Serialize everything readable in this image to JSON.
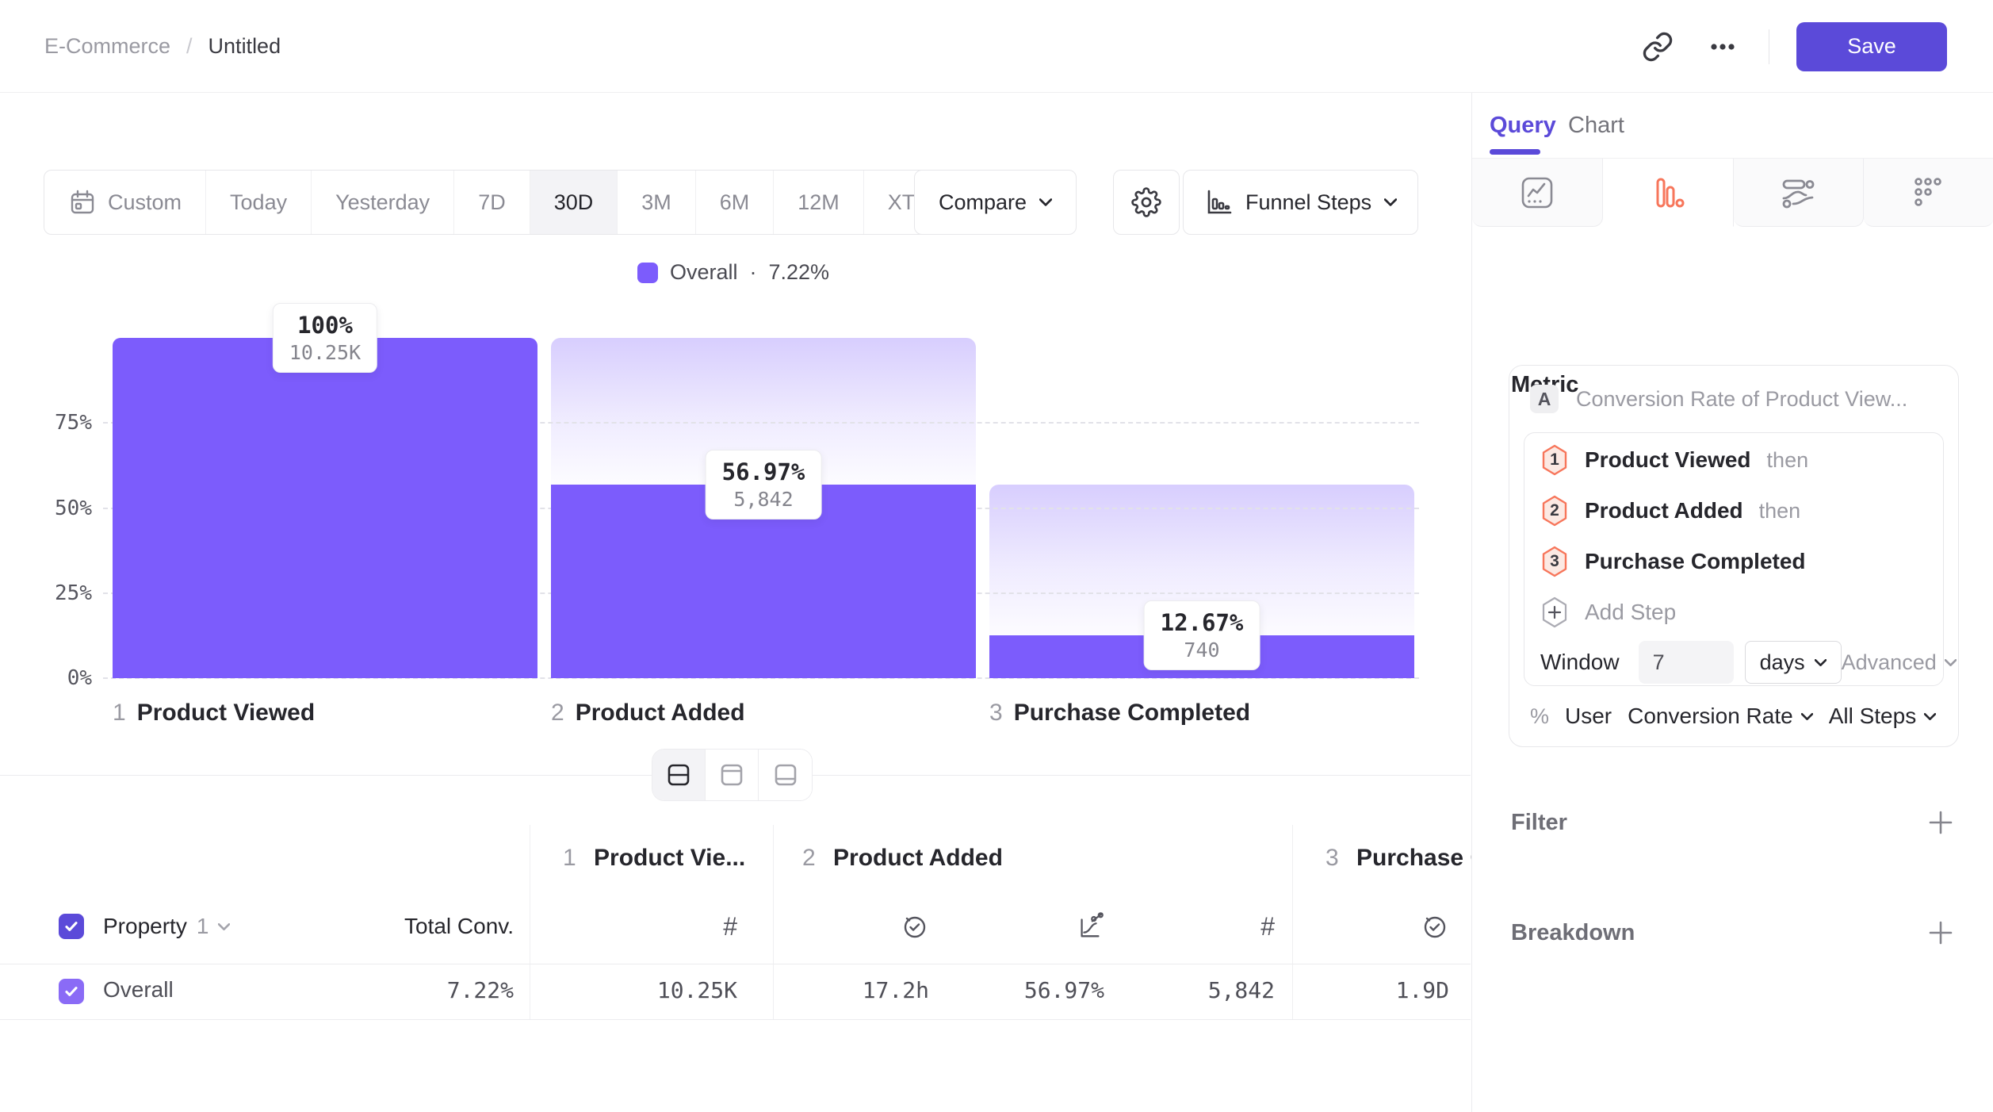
{
  "header": {
    "breadcrumb_parent": "E-Commerce",
    "breadcrumb_separator": "/",
    "breadcrumb_current": "Untitled",
    "save_label": "Save"
  },
  "toolbar": {
    "ranges": [
      "Custom",
      "Today",
      "Yesterday",
      "7D",
      "30D",
      "3M",
      "6M",
      "12M",
      "XTD"
    ],
    "selected_range": "30D",
    "compare_label": "Compare",
    "view_selector_label": "Funnel Steps"
  },
  "legend": {
    "series_name": "Overall",
    "separator": "·",
    "value": "7.22%",
    "swatch_color": "#7C5CFC"
  },
  "chart_data": {
    "type": "bar",
    "subtype": "funnel-steps",
    "title": "",
    "categories": [
      "Product Viewed",
      "Product Added",
      "Purchase Completed"
    ],
    "step_numbers": [
      "1",
      "2",
      "3"
    ],
    "series": [
      {
        "name": "Overall",
        "values_pct": [
          100,
          56.97,
          12.67
        ],
        "value_labels": [
          "100%",
          "56.97%",
          "12.67%"
        ],
        "counts": [
          "10.25K",
          "5,842",
          "740"
        ]
      }
    ],
    "overall_conversion": "7.22%",
    "y_ticks": [
      {
        "label": "75%",
        "pct": 75
      },
      {
        "label": "50%",
        "pct": 50
      },
      {
        "label": "25%",
        "pct": 25
      },
      {
        "label": "0%",
        "pct": 0
      }
    ],
    "ylim": [
      0,
      100
    ],
    "grid": "dashed-horizontal",
    "legend_position": "top-center",
    "bar_color": "#7C5CFC"
  },
  "layout_toggle": {
    "options": [
      "split",
      "chart-only",
      "table-only"
    ],
    "selected": "split"
  },
  "table": {
    "header": {
      "property_label": "Property",
      "property_index": "1",
      "total_conv_label": "Total Conv.",
      "step_columns": [
        {
          "num": "1",
          "name": "Product Vie..."
        },
        {
          "num": "2",
          "name": "Product Added"
        },
        {
          "num": "3",
          "name": "Purchase C"
        }
      ]
    },
    "rows": [
      {
        "name": "Overall",
        "total_conv": "7.22%",
        "values": [
          "10.25K",
          "17.2h",
          "56.97%",
          "5,842",
          "1.9D"
        ]
      }
    ]
  },
  "query_panel": {
    "tabs": [
      {
        "label": "Query"
      },
      {
        "label": "Chart"
      }
    ],
    "chart_types": [
      "insights",
      "funnels",
      "flows",
      "retention"
    ],
    "active_chart_type": "funnels",
    "metric_heading": "Metric",
    "metric": {
      "letter": "A",
      "title": "Conversion Rate of Product View..."
    },
    "steps": [
      {
        "num": "1",
        "label": "Product Viewed",
        "suffix": "then"
      },
      {
        "num": "2",
        "label": "Product Added",
        "suffix": "then"
      },
      {
        "num": "3",
        "label": "Purchase Completed",
        "suffix": ""
      }
    ],
    "add_step_label": "Add Step",
    "window_label": "Window",
    "window_value": "7",
    "window_unit": "days",
    "advanced_label": "Advanced",
    "measurement": {
      "symbol": "%",
      "entity": "User",
      "metric": "Conversion Rate",
      "scope": "All Steps"
    },
    "filter_label": "Filter",
    "breakdown_label": "Breakdown"
  },
  "colors": {
    "primary": "#5B4AD9",
    "bar_purple": "#7C5CFC",
    "funnel_orange": "#FF7557"
  }
}
